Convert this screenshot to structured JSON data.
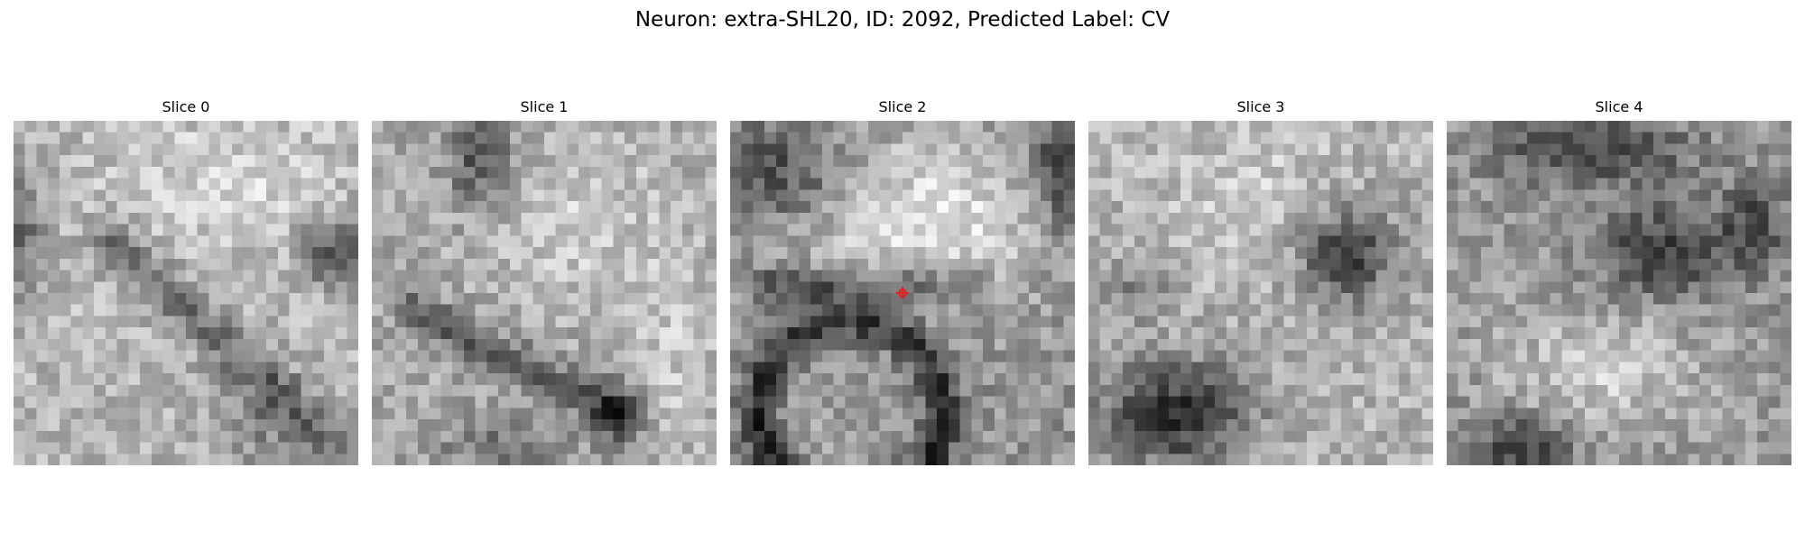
{
  "figure": {
    "title": "Neuron: extra-SHL20, ID: 2092, Predicted Label: CV"
  },
  "panels": [
    {
      "title": "Slice 0",
      "icon": "grayscale-image-slice-0"
    },
    {
      "title": "Slice 1",
      "icon": "grayscale-image-slice-1"
    },
    {
      "title": "Slice 2",
      "icon": "grayscale-image-slice-2"
    },
    {
      "title": "Slice 3",
      "icon": "grayscale-image-slice-3"
    },
    {
      "title": "Slice 4",
      "icon": "grayscale-image-slice-4"
    }
  ],
  "marker": {
    "panel": "Slice 2",
    "color": "#e32020",
    "icon": "center-crosshair-icon"
  },
  "colormap": "gray"
}
